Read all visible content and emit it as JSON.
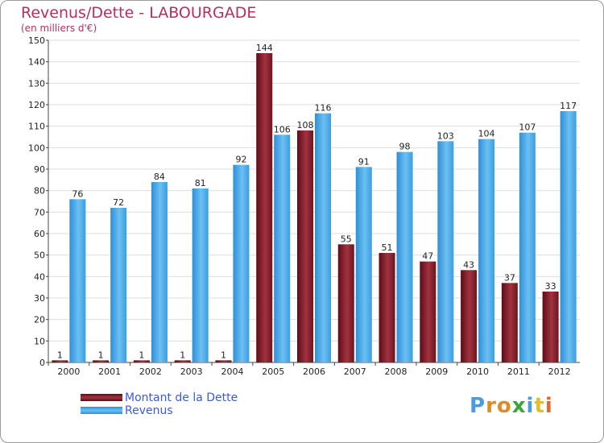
{
  "chart_data": {
    "type": "bar",
    "title": "Revenus/Dette - LABOURGADE",
    "subtitle": "(en milliers d'€)",
    "categories": [
      "2000",
      "2001",
      "2002",
      "2003",
      "2004",
      "2005",
      "2006",
      "2007",
      "2008",
      "2009",
      "2010",
      "2011",
      "2012"
    ],
    "series": [
      {
        "name": "Montant de la Dette",
        "color": "#8b1e2a",
        "values": [
          1,
          1,
          1,
          1,
          1,
          144,
          108,
          55,
          51,
          47,
          43,
          37,
          33
        ]
      },
      {
        "name": "Revenus",
        "color": "#3a9ee0",
        "values": [
          76,
          72,
          84,
          81,
          92,
          106,
          116,
          91,
          98,
          103,
          104,
          107,
          117
        ]
      }
    ],
    "ylim": [
      0,
      150
    ],
    "yticks": [
      0,
      10,
      20,
      30,
      40,
      50,
      60,
      70,
      80,
      90,
      100,
      110,
      120,
      130,
      140,
      150
    ],
    "grid": true,
    "legend_position": "bottom-left",
    "xlabel": "",
    "ylabel": ""
  },
  "logo": {
    "text": "Proxiti",
    "letter_colors": [
      "#4a9be0",
      "#e08a2a",
      "#e08a2a",
      "#3aa63a",
      "#4a9be0",
      "#e0c02a",
      "#e06a2a"
    ]
  }
}
